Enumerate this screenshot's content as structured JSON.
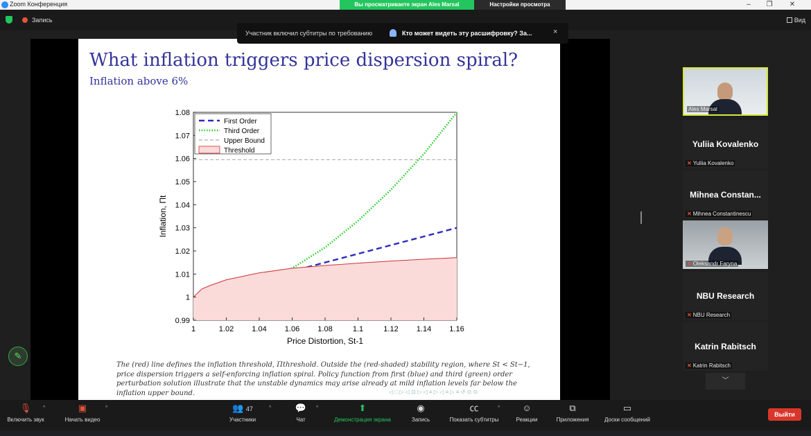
{
  "app": {
    "title": "Zoom Конференция",
    "share_banner": "Вы просматриваете экран Ales Marsal",
    "view_options": "Настройки просмотра",
    "minimize": "–",
    "maximize": "❐",
    "close": "✕"
  },
  "status": {
    "record_label": "Запись",
    "view_label": "Вид"
  },
  "caption_notice": {
    "text": "Участник включил субтитры по требованию",
    "link": "Кто может видеть эту расшифровку? За...",
    "close": "×"
  },
  "slide": {
    "title": "What inflation triggers price dispersion spiral?",
    "subtitle": "Inflation above 6%",
    "caption": "The (red) line defines the inflation threshold, Πthreshold. Outside the (red-shaded) stability region, where St < St−1, price dispersion triggers a self-enforcing inflation spiral. Policy function from first (blue) and third (green) order perturbation solution illustrate that the unstable dynamics may arise already at mild inflation levels far below the inflation upper bound.",
    "nav": "◁ □ ▷ ◁ ⊡ ▷ ◁ ≡ ▷ ◁ ≡ ▷ ≡ ↺ ⊙ ⊙"
  },
  "chart_data": {
    "type": "line",
    "xlabel": "Price Distortion, St-1",
    "ylabel": "Inflation, Πt",
    "xlim": [
      1.0,
      1.16
    ],
    "ylim": [
      0.99,
      1.08
    ],
    "xticks": [
      "1",
      "1.02",
      "1.04",
      "1.06",
      "1.08",
      "1.1",
      "1.12",
      "1.14",
      "1.16"
    ],
    "yticks": [
      "0.99",
      "1",
      "1.01",
      "1.02",
      "1.03",
      "1.04",
      "1.05",
      "1.06",
      "1.07",
      "1.08"
    ],
    "legend_position": "top-left",
    "series": [
      {
        "name": "First Order",
        "color": "#2b2bbd",
        "style": "dashed",
        "x": [
          1.0,
          1.04,
          1.08,
          1.12,
          1.16
        ],
        "y": [
          1.0,
          1.0075,
          1.015,
          1.0225,
          1.03
        ]
      },
      {
        "name": "Third Order",
        "color": "#22cc22",
        "style": "dotted",
        "x": [
          1.0,
          1.02,
          1.04,
          1.06,
          1.08,
          1.1,
          1.12,
          1.14,
          1.16
        ],
        "y": [
          0.996,
          1.0,
          1.0055,
          1.0125,
          1.0215,
          1.033,
          1.0465,
          1.062,
          1.08
        ]
      },
      {
        "name": "Upper Bound",
        "color": "#999999",
        "style": "dashed",
        "x": [
          1.0,
          1.16
        ],
        "y": [
          1.0595,
          1.0595
        ]
      },
      {
        "name": "Threshold",
        "color": "#cc3333",
        "fill": "#fbdada",
        "style": "area",
        "x": [
          1.0,
          1.005,
          1.01,
          1.02,
          1.04,
          1.06,
          1.08,
          1.1,
          1.12,
          1.14,
          1.16
        ],
        "y": [
          1.0,
          1.0035,
          1.005,
          1.0075,
          1.0105,
          1.0125,
          1.0137,
          1.0147,
          1.0156,
          1.0164,
          1.0171
        ]
      }
    ]
  },
  "participants": [
    {
      "name": "Ales Marsal",
      "video": true,
      "active": true
    },
    {
      "name": "Yuliia Kovalenko",
      "video": false
    },
    {
      "name": "Mihnea Constan...",
      "full_name": "Mihnea Constantinescu",
      "video": false
    },
    {
      "name": "Oleksandr Faryna",
      "video": true
    },
    {
      "name": "NBU Research",
      "video": false
    },
    {
      "name": "Katrin Rabitsch",
      "video": false
    }
  ],
  "toolbar": {
    "audio": "Включить звук",
    "video": "Начать видео",
    "participants": "Участники",
    "participants_count": "47",
    "chat": "Чат",
    "share": "Демонстрация экрана",
    "record": "Запись",
    "captions": "Показать субтитры",
    "reactions": "Реакции",
    "apps": "Приложения",
    "whiteboards": "Доски сообщений",
    "exit": "Выйти"
  }
}
